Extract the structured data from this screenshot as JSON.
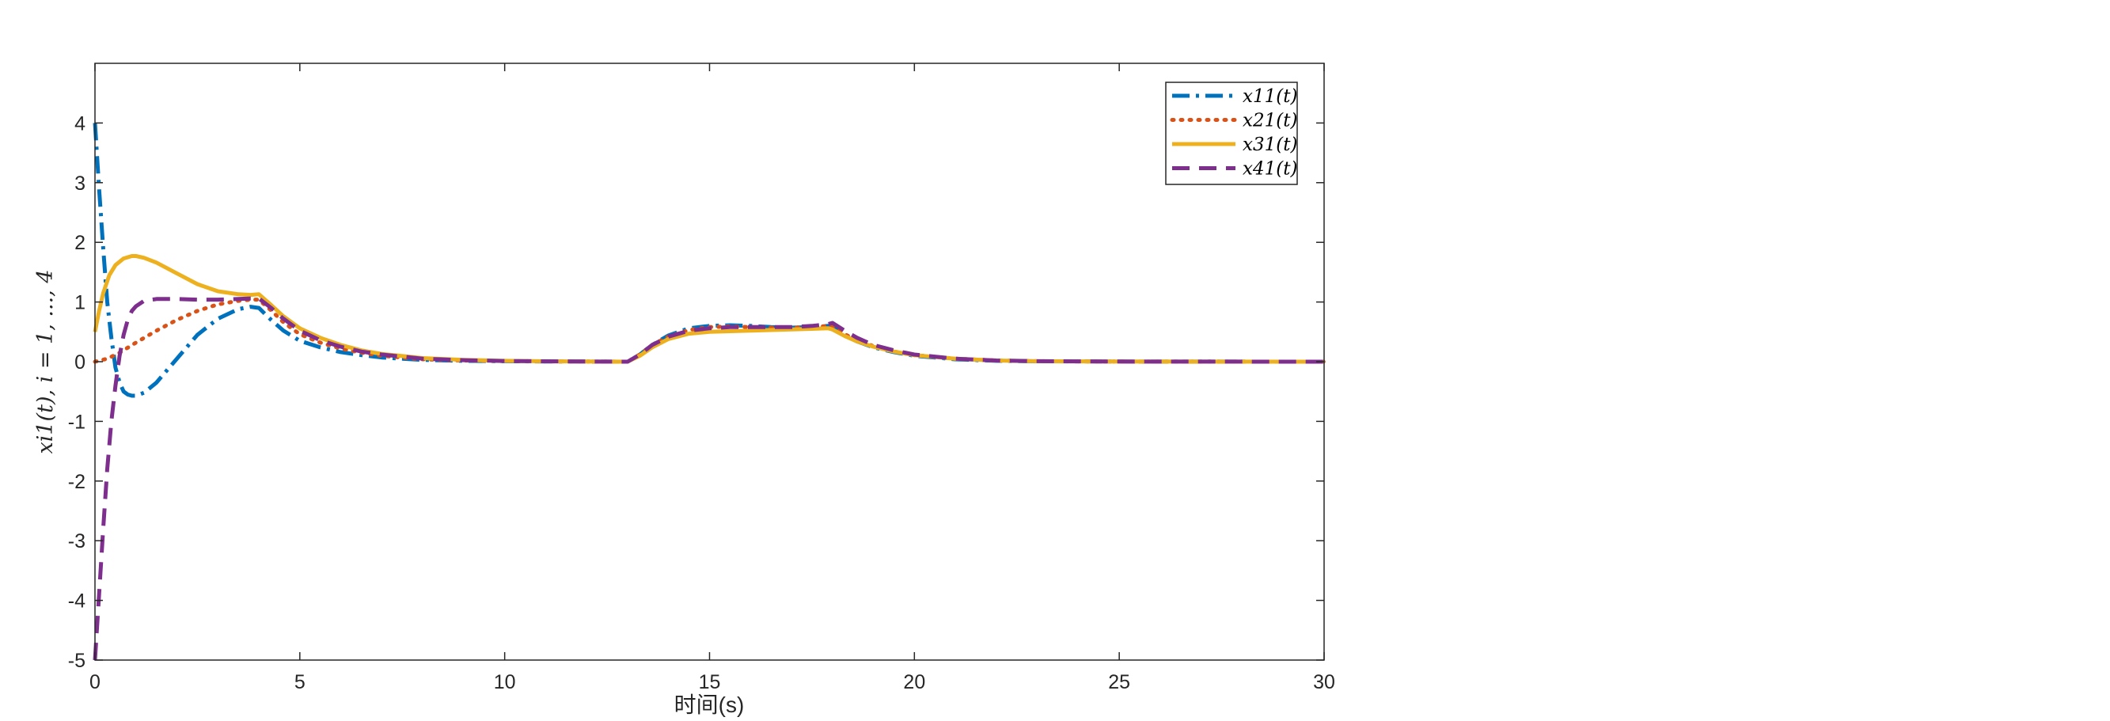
{
  "chart_data": {
    "type": "line",
    "xlabel": "时间(s)",
    "ylabel": "x_{i1}(t), i = 1, ..., 4",
    "ylabel_display": "xi1(t), i = 1, ..., 4",
    "xlim": [
      0,
      30
    ],
    "ylim": [
      -5,
      5
    ],
    "xticks": [
      "0",
      "5",
      "10",
      "15",
      "20",
      "25",
      "30"
    ],
    "yticks": [
      "4",
      "3",
      "2",
      "1",
      "0",
      "-1",
      "-2",
      "-3",
      "-4",
      "-5"
    ],
    "grid": false,
    "legend_position": "top-right",
    "series": [
      {
        "name": "x11(t)",
        "legend_label": "x11(t)",
        "color": "#0072BD",
        "style": "dashdot",
        "x": [
          0,
          0.1,
          0.2,
          0.3,
          0.4,
          0.5,
          0.6,
          0.7,
          0.8,
          0.9,
          1.0,
          1.2,
          1.5,
          2.0,
          2.5,
          3.0,
          3.5,
          3.8,
          4.0,
          4.3,
          4.6,
          5.0,
          5.5,
          6.0,
          6.5,
          7.0,
          8.0,
          9.0,
          10.0,
          11.0,
          12.0,
          13.0,
          13.3,
          13.6,
          14.0,
          14.5,
          15.0,
          15.5,
          16.0,
          16.5,
          17.0,
          17.5,
          17.9,
          18.0,
          18.3,
          18.6,
          19.0,
          19.5,
          20.0,
          21.0,
          22.0,
          23.0,
          25.0,
          27.0,
          30.0
        ],
        "y": [
          4.0,
          2.9,
          1.9,
          1.0,
          0.4,
          -0.1,
          -0.35,
          -0.5,
          -0.55,
          -0.57,
          -0.57,
          -0.52,
          -0.35,
          0.05,
          0.45,
          0.72,
          0.88,
          0.92,
          0.9,
          0.7,
          0.52,
          0.35,
          0.24,
          0.16,
          0.11,
          0.07,
          0.03,
          0.015,
          0.008,
          0.004,
          0.002,
          0.0,
          0.12,
          0.28,
          0.44,
          0.56,
          0.6,
          0.61,
          0.6,
          0.58,
          0.57,
          0.58,
          0.6,
          0.58,
          0.44,
          0.34,
          0.24,
          0.16,
          0.1,
          0.04,
          0.015,
          0.006,
          0.002,
          0.001,
          0.0
        ]
      },
      {
        "name": "x21(t)",
        "legend_label": "x21(t)",
        "color": "#D95319",
        "style": "dotted",
        "x": [
          0,
          0.3,
          0.6,
          1.0,
          1.5,
          2.0,
          2.5,
          3.0,
          3.5,
          3.8,
          4.0,
          4.3,
          4.6,
          5.0,
          5.5,
          6.0,
          6.5,
          7.0,
          8.0,
          9.0,
          10.0,
          11.0,
          12.0,
          13.0,
          13.3,
          13.6,
          14.0,
          14.5,
          15.0,
          15.5,
          16.0,
          16.5,
          17.0,
          17.5,
          17.9,
          18.0,
          18.3,
          18.6,
          19.0,
          19.5,
          20.0,
          21.0,
          22.0,
          23.0,
          25.0,
          27.0,
          30.0
        ],
        "y": [
          0.0,
          0.05,
          0.15,
          0.32,
          0.52,
          0.7,
          0.85,
          0.96,
          1.02,
          1.04,
          1.04,
          0.86,
          0.66,
          0.46,
          0.32,
          0.22,
          0.15,
          0.1,
          0.04,
          0.02,
          0.01,
          0.005,
          0.002,
          0.0,
          0.12,
          0.28,
          0.42,
          0.53,
          0.58,
          0.59,
          0.58,
          0.57,
          0.57,
          0.58,
          0.6,
          0.58,
          0.46,
          0.36,
          0.26,
          0.17,
          0.11,
          0.05,
          0.02,
          0.008,
          0.003,
          0.001,
          0.0
        ]
      },
      {
        "name": "x31(t)",
        "legend_label": "x31(t)",
        "color": "#EDB120",
        "style": "solid",
        "x": [
          0,
          0.1,
          0.2,
          0.35,
          0.5,
          0.7,
          0.9,
          1.0,
          1.2,
          1.5,
          2.0,
          2.5,
          3.0,
          3.5,
          3.8,
          4.0,
          4.3,
          4.6,
          5.0,
          5.5,
          6.0,
          6.5,
          7.0,
          8.0,
          9.0,
          10.0,
          11.0,
          12.0,
          13.0,
          13.3,
          13.6,
          14.0,
          14.5,
          15.0,
          15.5,
          16.0,
          16.5,
          17.0,
          17.5,
          17.9,
          18.0,
          18.3,
          18.6,
          19.0,
          19.5,
          20.0,
          21.0,
          22.0,
          23.0,
          25.0,
          27.0,
          30.0
        ],
        "y": [
          0.5,
          0.85,
          1.15,
          1.45,
          1.62,
          1.73,
          1.77,
          1.77,
          1.74,
          1.66,
          1.48,
          1.3,
          1.18,
          1.13,
          1.12,
          1.13,
          0.95,
          0.76,
          0.56,
          0.4,
          0.28,
          0.19,
          0.13,
          0.06,
          0.03,
          0.015,
          0.007,
          0.003,
          0.0,
          0.1,
          0.24,
          0.38,
          0.47,
          0.5,
          0.51,
          0.52,
          0.53,
          0.54,
          0.55,
          0.56,
          0.54,
          0.43,
          0.34,
          0.25,
          0.17,
          0.11,
          0.05,
          0.02,
          0.008,
          0.003,
          0.001,
          0.0
        ]
      },
      {
        "name": "x41(t)",
        "legend_label": "x41(t)",
        "color": "#7E2F8E",
        "style": "dashed",
        "x": [
          0,
          0.1,
          0.2,
          0.3,
          0.4,
          0.5,
          0.6,
          0.7,
          0.8,
          0.9,
          1.0,
          1.2,
          1.5,
          2.0,
          2.5,
          3.0,
          3.5,
          3.8,
          4.0,
          4.3,
          4.6,
          5.0,
          5.5,
          6.0,
          6.5,
          7.0,
          8.0,
          9.0,
          10.0,
          11.0,
          12.0,
          13.0,
          13.3,
          13.6,
          14.0,
          14.5,
          15.0,
          15.5,
          16.0,
          16.5,
          17.0,
          17.5,
          17.9,
          18.0,
          18.3,
          18.6,
          19.0,
          19.5,
          20.0,
          21.0,
          22.0,
          23.0,
          25.0,
          27.0,
          30.0
        ],
        "y": [
          -5.0,
          -3.9,
          -2.8,
          -1.8,
          -1.0,
          -0.4,
          0.1,
          0.45,
          0.7,
          0.85,
          0.93,
          1.02,
          1.05,
          1.05,
          1.04,
          1.04,
          1.05,
          1.06,
          1.06,
          0.9,
          0.72,
          0.52,
          0.36,
          0.25,
          0.17,
          0.12,
          0.05,
          0.025,
          0.012,
          0.006,
          0.003,
          0.0,
          0.12,
          0.28,
          0.42,
          0.52,
          0.56,
          0.58,
          0.58,
          0.58,
          0.58,
          0.6,
          0.63,
          0.65,
          0.52,
          0.4,
          0.28,
          0.19,
          0.12,
          0.05,
          0.02,
          0.008,
          0.003,
          0.001,
          0.0
        ]
      }
    ]
  }
}
